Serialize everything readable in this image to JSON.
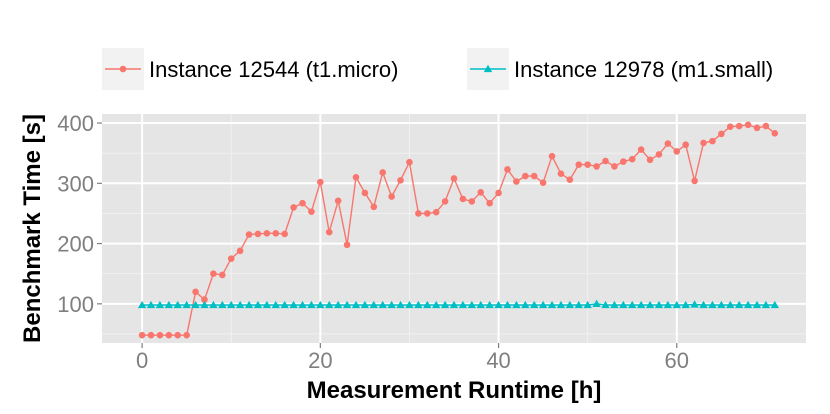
{
  "chart_data": {
    "type": "line",
    "xlabel": "Measurement Runtime [h]",
    "ylabel": "Benchmark Time [s]",
    "xlim": [
      -4.5,
      74.5
    ],
    "ylim": [
      35,
      415
    ],
    "xticks": [
      0,
      20,
      40,
      60
    ],
    "yticks": [
      100,
      200,
      300,
      400
    ],
    "x_tick_labels": [
      "0",
      "20",
      "40",
      "60"
    ],
    "y_tick_labels": [
      "100",
      "200",
      "300",
      "400"
    ],
    "grid": true,
    "legend_position": "top",
    "series": [
      {
        "name": "Instance 12544 (t1.micro)",
        "color": "#f8766d",
        "marker": "circle",
        "x": [
          0,
          1,
          2,
          3,
          4,
          5,
          6,
          7,
          8,
          9,
          10,
          11,
          12,
          13,
          14,
          15,
          16,
          17,
          18,
          19,
          20,
          21,
          22,
          23,
          24,
          25,
          26,
          27,
          28,
          29,
          30,
          31,
          32,
          33,
          34,
          35,
          36,
          37,
          38,
          39,
          40,
          41,
          42,
          43,
          44,
          45,
          46,
          47,
          48,
          49,
          50,
          51,
          52,
          53,
          54,
          55,
          56,
          57,
          58,
          59,
          60,
          61,
          62,
          63,
          64,
          65,
          66,
          67,
          68,
          69,
          70,
          71
        ],
        "values": [
          48,
          48,
          48,
          48,
          48,
          48,
          120,
          107,
          150,
          148,
          175,
          188,
          215,
          216,
          217,
          217,
          216,
          260,
          267,
          253,
          302,
          219,
          271,
          198,
          310,
          284,
          261,
          318,
          278,
          305,
          335,
          250,
          250,
          252,
          270,
          308,
          274,
          270,
          285,
          267,
          284,
          323,
          303,
          312,
          312,
          301,
          345,
          316,
          306,
          331,
          331,
          328,
          337,
          328,
          336,
          340,
          356,
          339,
          348,
          366,
          353,
          364,
          304,
          367,
          370,
          382,
          394,
          395,
          397,
          392,
          395,
          383
        ]
      },
      {
        "name": "Instance 12978 (m1.small)",
        "color": "#00bfc4",
        "marker": "triangle",
        "x": [
          0,
          1,
          2,
          3,
          4,
          5,
          6,
          7,
          8,
          9,
          10,
          11,
          12,
          13,
          14,
          15,
          16,
          17,
          18,
          19,
          20,
          21,
          22,
          23,
          24,
          25,
          26,
          27,
          28,
          29,
          30,
          31,
          32,
          33,
          34,
          35,
          36,
          37,
          38,
          39,
          40,
          41,
          42,
          43,
          44,
          45,
          46,
          47,
          48,
          49,
          50,
          51,
          52,
          53,
          54,
          55,
          56,
          57,
          58,
          59,
          60,
          61,
          62,
          63,
          64,
          65,
          66,
          67,
          68,
          69,
          70,
          71
        ],
        "values": [
          98,
          98,
          98,
          98,
          98,
          98,
          98,
          98,
          98,
          98,
          98,
          98,
          98,
          98,
          98,
          98,
          98,
          98,
          98,
          98,
          98,
          98,
          98,
          98,
          98,
          98,
          98,
          98,
          98,
          98,
          98,
          98,
          98,
          98,
          98,
          98,
          98,
          98,
          98,
          98,
          98,
          98,
          98,
          98,
          98,
          98,
          98,
          98,
          98,
          98,
          98,
          100,
          98,
          98,
          98,
          98,
          98,
          98,
          98,
          98,
          98,
          98,
          99,
          98,
          98,
          98,
          98,
          98,
          98,
          98,
          98,
          98
        ]
      }
    ]
  }
}
